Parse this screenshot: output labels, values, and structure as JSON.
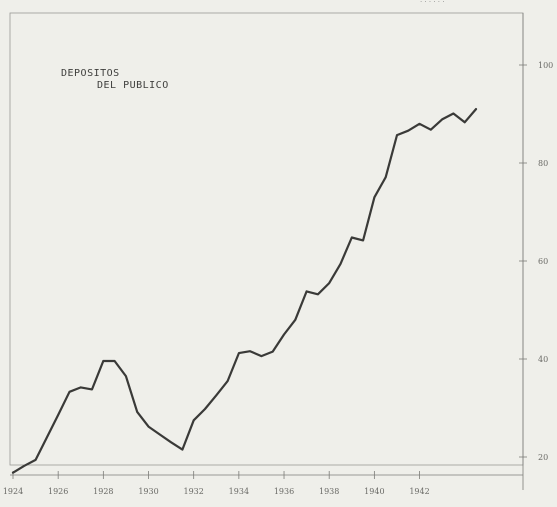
{
  "chart_data": {
    "type": "line",
    "title": [
      "DEPOSITOS",
      "DEL PUBLICO"
    ],
    "xlabel": "",
    "ylabel": "",
    "x_ticks": [
      1924,
      1926,
      1928,
      1930,
      1932,
      1934,
      1936,
      1938,
      1940,
      1942
    ],
    "x_tick_labels": [
      "1924",
      "1926",
      "1928",
      "1930",
      "1932",
      "1934",
      "1936",
      "1938",
      "1940",
      "1942"
    ],
    "y_ticks": [
      20,
      40,
      60,
      80,
      100
    ],
    "y_tick_labels": [
      "20",
      "40",
      "60",
      "80",
      "100"
    ],
    "xlim": [
      1924,
      1944.5
    ],
    "ylim": [
      15,
      105
    ],
    "grid": false,
    "legend": "none",
    "line_color": "#3a3a38",
    "series": [
      {
        "values": [
          [
            1924.0,
            16.8
          ],
          [
            1924.5,
            18.2
          ],
          [
            1925.0,
            19.4
          ],
          [
            1925.5,
            24.0
          ],
          [
            1926.0,
            28.6
          ],
          [
            1926.5,
            33.3
          ],
          [
            1927.0,
            34.2
          ],
          [
            1927.5,
            33.8
          ],
          [
            1928.0,
            39.6
          ],
          [
            1928.5,
            39.6
          ],
          [
            1929.0,
            36.5
          ],
          [
            1929.5,
            29.2
          ],
          [
            1930.0,
            26.2
          ],
          [
            1930.5,
            24.6
          ],
          [
            1931.0,
            23.0
          ],
          [
            1931.5,
            21.5
          ],
          [
            1932.0,
            27.5
          ],
          [
            1932.5,
            29.8
          ],
          [
            1933.0,
            32.6
          ],
          [
            1933.5,
            35.5
          ],
          [
            1934.0,
            41.2
          ],
          [
            1934.5,
            41.6
          ],
          [
            1935.0,
            40.6
          ],
          [
            1935.5,
            41.5
          ],
          [
            1936.0,
            45.0
          ],
          [
            1936.5,
            48.0
          ],
          [
            1937.0,
            53.8
          ],
          [
            1937.5,
            53.2
          ],
          [
            1938.0,
            55.5
          ],
          [
            1938.5,
            59.4
          ],
          [
            1939.0,
            64.8
          ],
          [
            1939.5,
            64.2
          ],
          [
            1940.0,
            73.0
          ],
          [
            1940.5,
            77.1
          ],
          [
            1941.0,
            85.7
          ],
          [
            1941.5,
            86.6
          ],
          [
            1942.0,
            88.0
          ],
          [
            1942.5,
            86.8
          ],
          [
            1943.0,
            88.9
          ],
          [
            1943.5,
            90.1
          ],
          [
            1944.0,
            88.3
          ],
          [
            1944.5,
            91.0
          ]
        ]
      }
    ]
  }
}
